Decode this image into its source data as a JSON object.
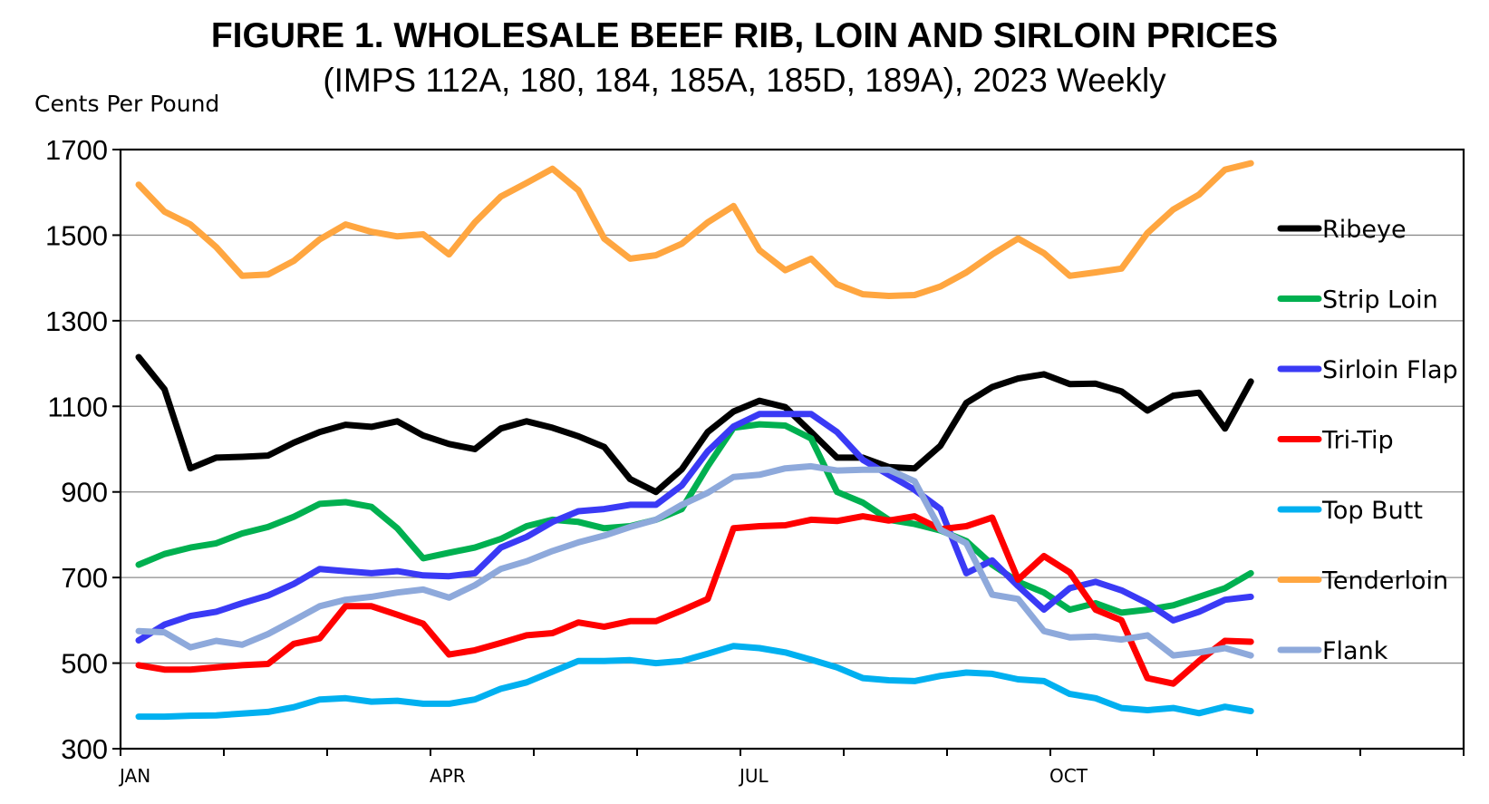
{
  "chart_data": {
    "type": "line",
    "title": "FIGURE 1.  WHOLESALE BEEF RIB, LOIN AND SIRLOIN PRICES",
    "subtitle": "(IMPS 112A, 180, 184, 185A, 185D, 189A), 2023 Weekly",
    "ylabel": "Cents Per Pound",
    "xlabel": "",
    "ylim": [
      300,
      1700
    ],
    "yticks": [
      300,
      500,
      700,
      900,
      1100,
      1300,
      1500,
      1700
    ],
    "x_ticks": [
      "JAN",
      "APR",
      "JUL",
      "OCT"
    ],
    "x_weeks": 52,
    "grid": true,
    "legend_position": "right",
    "series": [
      {
        "name": "Ribeye",
        "color": "#000000",
        "values": [
          1215,
          1140,
          955,
          980,
          982,
          985,
          1015,
          1040,
          1057,
          1052,
          1065,
          1032,
          1012,
          1000,
          1048,
          1065,
          1050,
          1030,
          1005,
          930,
          900,
          953,
          1040,
          1088,
          1113,
          1098,
          1040,
          980,
          980,
          958,
          955,
          1008,
          1108,
          1145,
          1165,
          1175,
          1152,
          1153,
          1135,
          1090,
          1125,
          1132,
          1048,
          1158
        ]
      },
      {
        "name": "Strip Loin",
        "color": "#00B050",
        "values": [
          730,
          755,
          770,
          780,
          803,
          818,
          842,
          872,
          876,
          865,
          815,
          745,
          758,
          770,
          790,
          820,
          835,
          830,
          815,
          820,
          835,
          860,
          960,
          1050,
          1058,
          1055,
          1025,
          900,
          875,
          835,
          825,
          810,
          785,
          730,
          690,
          665,
          625,
          640,
          618,
          625,
          635,
          655,
          675,
          710
        ]
      },
      {
        "name": "Sirloin Flap",
        "color": "#3A3AF5",
        "values": [
          553,
          590,
          610,
          620,
          640,
          658,
          685,
          720,
          715,
          710,
          715,
          705,
          703,
          710,
          770,
          795,
          830,
          855,
          860,
          870,
          870,
          915,
          995,
          1053,
          1082,
          1082,
          1082,
          1040,
          975,
          940,
          905,
          860,
          710,
          740,
          680,
          625,
          675,
          690,
          670,
          640,
          600,
          620,
          648,
          655
        ]
      },
      {
        "name": "Tri-Tip",
        "color": "#FF0000",
        "values": [
          495,
          485,
          485,
          490,
          495,
          498,
          545,
          558,
          633,
          633,
          613,
          592,
          520,
          530,
          547,
          565,
          570,
          595,
          585,
          598,
          598,
          623,
          650,
          815,
          820,
          822,
          835,
          832,
          843,
          833,
          843,
          813,
          820,
          840,
          695,
          750,
          712,
          625,
          600,
          465,
          452,
          505,
          552,
          550
        ]
      },
      {
        "name": "Top Butt",
        "color": "#00B0F0",
        "values": [
          375,
          375,
          377,
          378,
          382,
          386,
          397,
          415,
          418,
          410,
          412,
          405,
          405,
          415,
          440,
          455,
          480,
          505,
          505,
          507,
          500,
          505,
          522,
          540,
          535,
          525,
          508,
          490,
          465,
          460,
          458,
          470,
          478,
          475,
          462,
          458,
          428,
          418,
          395,
          390,
          395,
          383,
          398,
          388
        ]
      },
      {
        "name": "Tenderloin",
        "color": "#FFA640",
        "values": [
          1618,
          1555,
          1525,
          1472,
          1405,
          1408,
          1440,
          1490,
          1525,
          1508,
          1497,
          1502,
          1455,
          1530,
          1590,
          1622,
          1655,
          1605,
          1492,
          1445,
          1453,
          1480,
          1530,
          1568,
          1465,
          1418,
          1445,
          1385,
          1362,
          1358,
          1360,
          1380,
          1413,
          1455,
          1492,
          1458,
          1405,
          1413,
          1422,
          1505,
          1560,
          1595,
          1653,
          1668
        ]
      },
      {
        "name": "Flank",
        "color": "#8EA9DB",
        "values": [
          575,
          572,
          537,
          552,
          543,
          568,
          600,
          633,
          648,
          655,
          665,
          672,
          653,
          682,
          720,
          738,
          762,
          782,
          798,
          818,
          835,
          870,
          898,
          935,
          940,
          955,
          960,
          950,
          952,
          952,
          925,
          812,
          780,
          660,
          650,
          575,
          560,
          562,
          555,
          565,
          518,
          525,
          535,
          518
        ]
      }
    ]
  }
}
